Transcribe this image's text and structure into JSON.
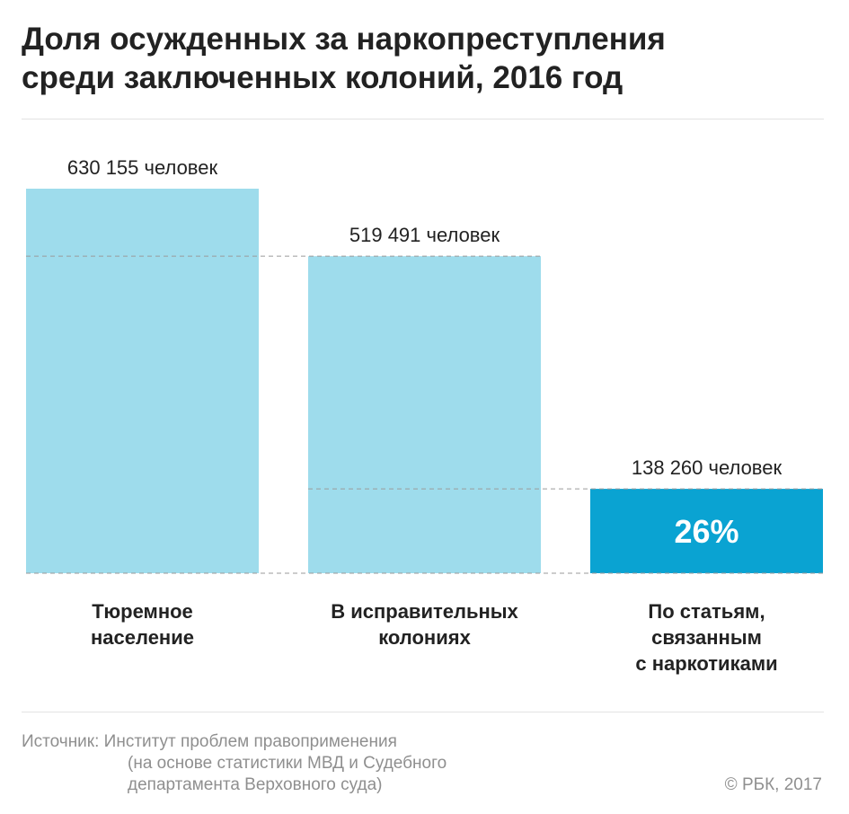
{
  "title_line1": "Доля осужденных за наркопреступления",
  "title_line2": "среди заключенных колоний, 2016 год",
  "chart_data": {
    "type": "bar",
    "categories": [
      [
        "Тюремное",
        "население"
      ],
      [
        "В исправительных",
        "колониях"
      ],
      [
        "По статьям,",
        "связанным",
        "с наркотиками"
      ]
    ],
    "values": [
      630155,
      519491,
      138260
    ],
    "data_labels": [
      "630 155 человек",
      "519 491 человек",
      "138 260 человек"
    ],
    "highlight": {
      "index": 2,
      "label": "26%"
    },
    "colors": {
      "bar": "#9edcec",
      "highlight": "#0aa3d2",
      "highlight_text": "#ffffff",
      "guide": "#9a9a9a"
    },
    "ylim": [
      0,
      630155
    ],
    "grid": false
  },
  "source": {
    "line1": "Источник: Институт проблем правоприменения",
    "line2": "(на основе статистики МВД и Судебного",
    "line3": "департамента Верховного суда)"
  },
  "credit": "© РБК, 2017"
}
